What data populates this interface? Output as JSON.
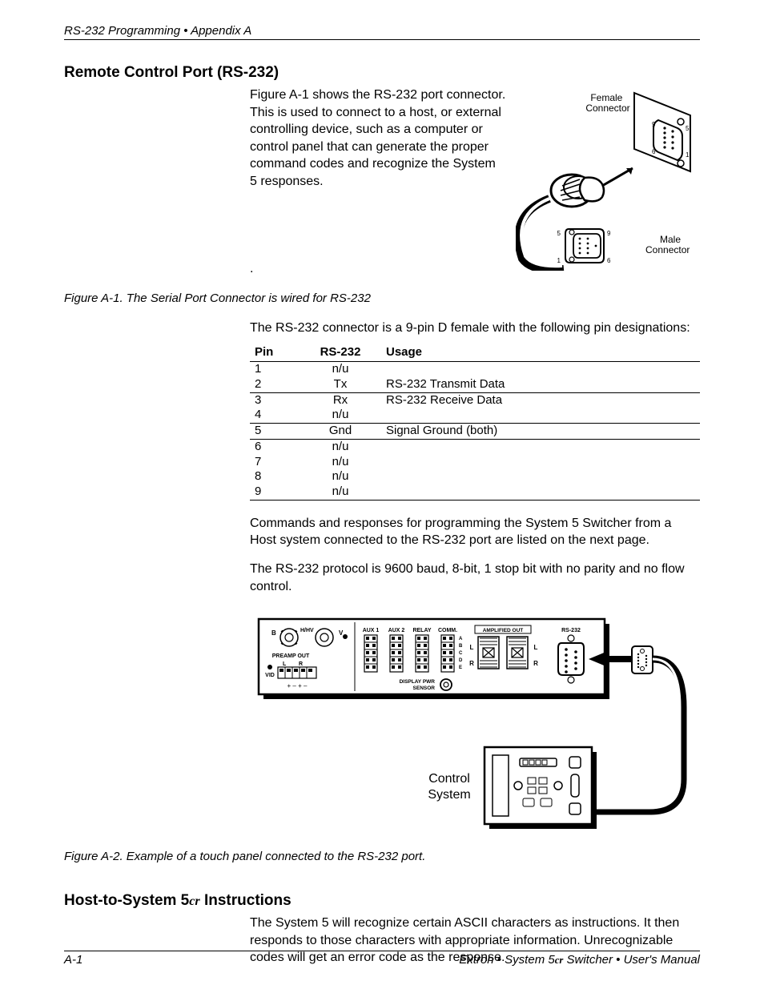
{
  "header": "RS-232 Programming • Appendix A",
  "section1": {
    "title": "Remote Control Port (RS-232)",
    "intro": "Figure A-1 shows the RS-232 port connector. This is used to connect to a host, or external controlling device, such as a computer or control panel that can generate the proper command codes and recognize the System 5 responses.",
    "dot": ".",
    "connector_labels": {
      "female": "Female Connector",
      "male": "Male Connector",
      "pins": {
        "p1": "1",
        "p5": "5",
        "p6": "6",
        "p9": "9"
      }
    },
    "fig1_caption": "Figure A-1. The Serial Port Connector is wired for RS-232",
    "para2": "The RS-232 connector is a 9-pin D female with the following pin designations:",
    "table": {
      "headers": [
        "Pin",
        "RS-232",
        "Usage"
      ],
      "rows": [
        {
          "pin": "1",
          "rs232": "n/u",
          "usage": "",
          "hr": false
        },
        {
          "pin": "2",
          "rs232": "Tx",
          "usage": "RS-232 Transmit Data",
          "hr": true
        },
        {
          "pin": "3",
          "rs232": "Rx",
          "usage": "RS-232 Receive Data",
          "hr": false
        },
        {
          "pin": "4",
          "rs232": "n/u",
          "usage": "",
          "hr": true
        },
        {
          "pin": "5",
          "rs232": "Gnd",
          "usage": "Signal Ground (both)",
          "hr": true
        },
        {
          "pin": "6",
          "rs232": "n/u",
          "usage": "",
          "hr": false
        },
        {
          "pin": "7",
          "rs232": "n/u",
          "usage": "",
          "hr": false
        },
        {
          "pin": "8",
          "rs232": "n/u",
          "usage": "",
          "hr": false
        },
        {
          "pin": "9",
          "rs232": "n/u",
          "usage": "",
          "hr": true
        }
      ]
    },
    "para3": "Commands and responses for programming the System 5 Switcher from a Host system connected to the RS-232 port are listed on the next page.",
    "para4": "The RS-232 protocol is 9600 baud, 8-bit, 1 stop bit with no parity and no flow control.",
    "device_labels": {
      "b": "B",
      "hhv": "H/HV",
      "v": "V",
      "preamp": "PREAMP OUT",
      "l": "L",
      "r": "R",
      "vid": "VID",
      "plusminus": "+  –  +  –",
      "aux1": "AUX 1",
      "aux2": "AUX 2",
      "relay": "RELAY",
      "comm": "COMM.",
      "abcde": "A\nB\nC\nD\nE",
      "display_pwr": "DISPLAY PWR\nSENSOR",
      "amp_out": "AMPLIFIED OUT",
      "rs232": "RS-232",
      "control_system": "Control System"
    },
    "fig2_caption": "Figure A-2. Example of a touch panel connected to the RS-232 port."
  },
  "section2": {
    "title_pre": "Host-to-System 5",
    "title_cr": "cr",
    "title_post": " Instructions",
    "para": "The System 5 will recognize certain ASCII characters as instructions. It then responds to those characters with appropriate information. Unrecognizable codes will get an error code as the response."
  },
  "footer": {
    "left": "A-1",
    "right_pre": "Extron • System 5",
    "right_cr": "cr",
    "right_post": " Switcher • User's Manual"
  },
  "colors": {
    "text": "#000000",
    "bg": "#ffffff",
    "line": "#000000"
  }
}
